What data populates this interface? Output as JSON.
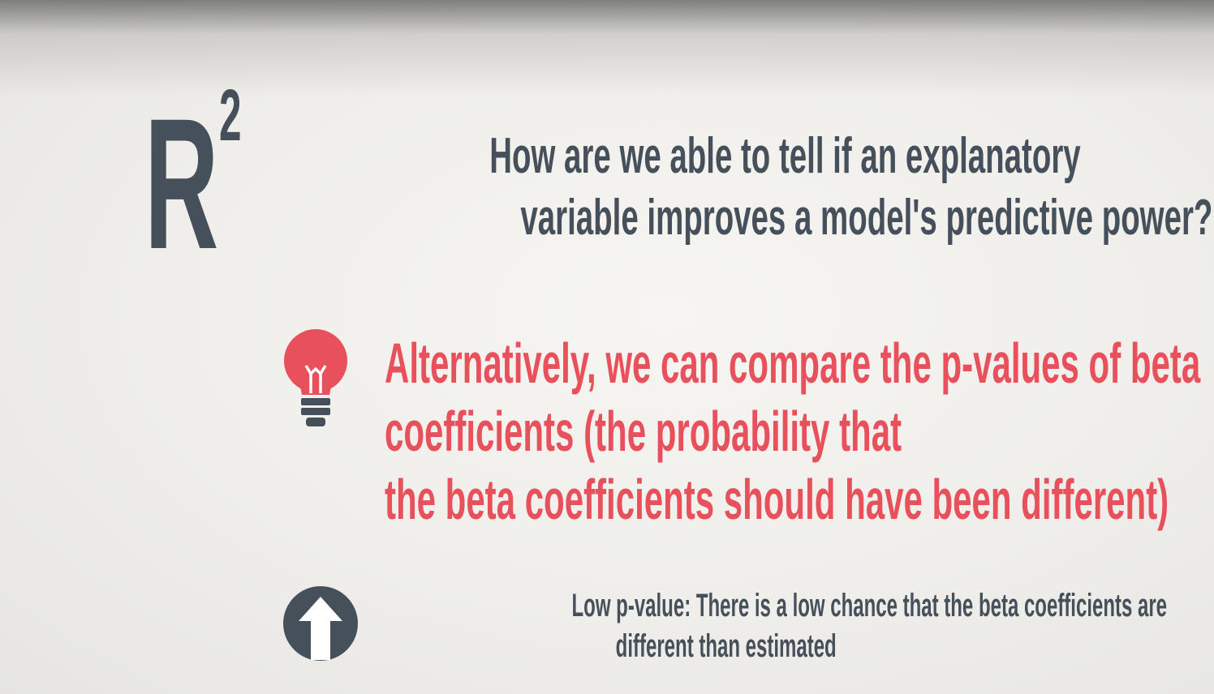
{
  "slide": {
    "symbol": {
      "letter": "R",
      "exponent": "2"
    },
    "question": {
      "lines": [
        "How are we able to tell if an explanatory",
        "variable improves a model's predictive power?"
      ]
    },
    "answer": {
      "icon": "lightbulb-icon",
      "lines": [
        "Alternatively, we can compare the p-values of beta",
        "coefficients (the probability that",
        "the beta coefficients should have been different)"
      ]
    },
    "note": {
      "icon": "up-arrow-circle-icon",
      "lines": [
        "Low p-value: There is a low chance that the beta coefficients are",
        "different than estimated"
      ]
    }
  },
  "colors": {
    "dark": "#46505b",
    "accent": "#e8505c"
  }
}
